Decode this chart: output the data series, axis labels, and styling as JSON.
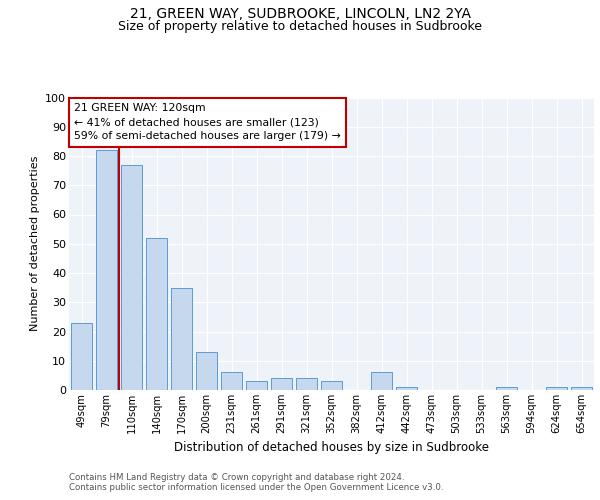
{
  "title1": "21, GREEN WAY, SUDBROOKE, LINCOLN, LN2 2YA",
  "title2": "Size of property relative to detached houses in Sudbrooke",
  "xlabel": "Distribution of detached houses by size in Sudbrooke",
  "ylabel": "Number of detached properties",
  "categories": [
    "49sqm",
    "79sqm",
    "110sqm",
    "140sqm",
    "170sqm",
    "200sqm",
    "231sqm",
    "261sqm",
    "291sqm",
    "321sqm",
    "352sqm",
    "382sqm",
    "412sqm",
    "442sqm",
    "473sqm",
    "503sqm",
    "533sqm",
    "563sqm",
    "594sqm",
    "624sqm",
    "654sqm"
  ],
  "values": [
    23,
    82,
    77,
    52,
    35,
    13,
    6,
    3,
    4,
    4,
    3,
    0,
    6,
    1,
    0,
    0,
    0,
    1,
    0,
    1,
    1
  ],
  "bar_color": "#c5d8ed",
  "bar_edge_color": "#5b9bd5",
  "background_color": "#eef2f9",
  "vline_color": "#c00000",
  "annotation_text": "21 GREEN WAY: 120sqm\n← 41% of detached houses are smaller (123)\n59% of semi-detached houses are larger (179) →",
  "annotation_box_color": "#ffffff",
  "annotation_box_edge": "#c00000",
  "ylim": [
    0,
    100
  ],
  "yticks": [
    0,
    10,
    20,
    30,
    40,
    50,
    60,
    70,
    80,
    90,
    100
  ],
  "footnote1": "Contains HM Land Registry data © Crown copyright and database right 2024.",
  "footnote2": "Contains public sector information licensed under the Open Government Licence v3.0."
}
